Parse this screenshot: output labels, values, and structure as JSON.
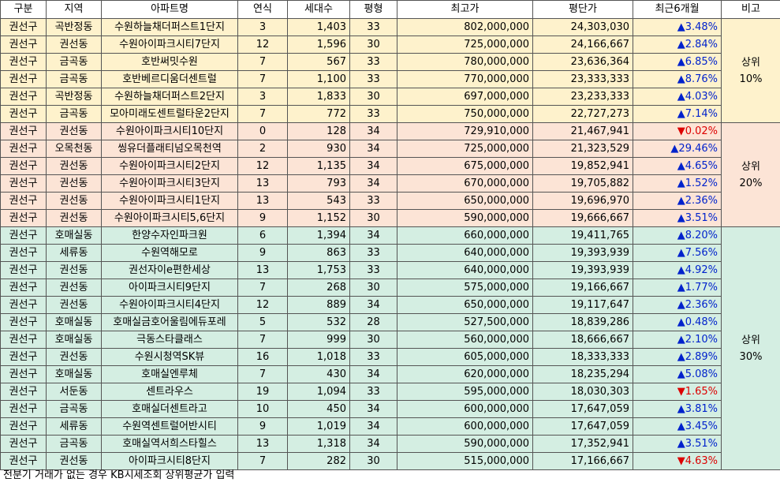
{
  "headers": [
    "구분",
    "지역",
    "아파트명",
    "연식",
    "세대수",
    "평형",
    "최고가",
    "평단가",
    "최근6개월",
    "비고"
  ],
  "groups": [
    {
      "note": [
        "상위",
        "10%"
      ],
      "bg": "#fef2cc",
      "rows": [
        [
          "권선구",
          "곡반정동",
          "수원하늘채더퍼스트1단지",
          "3",
          "1,403",
          "33",
          "802,000,000",
          "24,303,030",
          "▲3.48%"
        ],
        [
          "권선구",
          "권선동",
          "수원아이파크시티7단지",
          "12",
          "1,596",
          "30",
          "725,000,000",
          "24,166,667",
          "▲2.84%"
        ],
        [
          "권선구",
          "금곡동",
          "호반써밋수원",
          "7",
          "567",
          "33",
          "780,000,000",
          "23,636,364",
          "▲6.85%"
        ],
        [
          "권선구",
          "금곡동",
          "호반베르디움더센트럴",
          "7",
          "1,100",
          "33",
          "770,000,000",
          "23,333,333",
          "▲8.76%"
        ],
        [
          "권선구",
          "곡반정동",
          "수원하늘채더퍼스트2단지",
          "3",
          "1,833",
          "30",
          "697,000,000",
          "23,233,333",
          "▲4.03%"
        ],
        [
          "권선구",
          "금곡동",
          "모아미래도센트럴타운2단지",
          "7",
          "772",
          "33",
          "750,000,000",
          "22,727,273",
          "▲7.14%"
        ]
      ]
    },
    {
      "note": [
        "상위",
        "20%"
      ],
      "bg": "#fce4d6",
      "rows": [
        [
          "권선구",
          "권선동",
          "수원아이파크시티10단지",
          "0",
          "128",
          "34",
          "729,910,000",
          "21,467,941",
          "▼0.02%"
        ],
        [
          "권선구",
          "오목천동",
          "씽유더플래티넘오목천역",
          "2",
          "930",
          "34",
          "725,000,000",
          "21,323,529",
          "▲29.46%"
        ],
        [
          "권선구",
          "권선동",
          "수원아이파크시티2단지",
          "12",
          "1,135",
          "34",
          "675,000,000",
          "19,852,941",
          "▲4.65%"
        ],
        [
          "권선구",
          "권선동",
          "수원아이파크시티3단지",
          "13",
          "793",
          "34",
          "670,000,000",
          "19,705,882",
          "▲1.52%"
        ],
        [
          "권선구",
          "권선동",
          "수원아이파크시티1단지",
          "13",
          "543",
          "33",
          "650,000,000",
          "19,696,970",
          "▲2.36%"
        ],
        [
          "권선구",
          "권선동",
          "수원아이파크시티5,6단지",
          "9",
          "1,152",
          "30",
          "590,000,000",
          "19,666,667",
          "▲3.51%"
        ]
      ]
    },
    {
      "note": [
        "상위",
        "30%"
      ],
      "bg": "#d4eee2",
      "rows": [
        [
          "권선구",
          "호매실동",
          "한양수자인파크원",
          "6",
          "1,394",
          "34",
          "660,000,000",
          "19,411,765",
          "▲8.20%"
        ],
        [
          "권선구",
          "세류동",
          "수원역해모로",
          "9",
          "863",
          "33",
          "640,000,000",
          "19,393,939",
          "▲7.56%"
        ],
        [
          "권선구",
          "권선동",
          "권선자이e편한세상",
          "13",
          "1,753",
          "33",
          "640,000,000",
          "19,393,939",
          "▲4.92%"
        ],
        [
          "권선구",
          "권선동",
          "아이파크시티9단지",
          "7",
          "268",
          "30",
          "575,000,000",
          "19,166,667",
          "▲1.77%"
        ],
        [
          "권선구",
          "권선동",
          "수원아이파크시티4단지",
          "12",
          "889",
          "34",
          "650,000,000",
          "19,117,647",
          "▲2.36%"
        ],
        [
          "권선구",
          "호매실동",
          "호매실금호어울림에듀포레",
          "5",
          "532",
          "28",
          "527,500,000",
          "18,839,286",
          "▲0.48%"
        ],
        [
          "권선구",
          "호매실동",
          "극동스타클래스",
          "7",
          "999",
          "30",
          "560,000,000",
          "18,666,667",
          "▲2.10%"
        ],
        [
          "권선구",
          "권선동",
          "수원시청역SK뷰",
          "16",
          "1,018",
          "33",
          "605,000,000",
          "18,333,333",
          "▲2.89%"
        ],
        [
          "권선구",
          "호매실동",
          "호매실엔루체",
          "7",
          "430",
          "34",
          "620,000,000",
          "18,235,294",
          "▲5.08%"
        ],
        [
          "권선구",
          "서둔동",
          "센트라우스",
          "19",
          "1,094",
          "33",
          "595,000,000",
          "18,030,303",
          "▼1.65%"
        ],
        [
          "권선구",
          "금곡동",
          "호매실더센트라고",
          "10",
          "450",
          "34",
          "600,000,000",
          "17,647,059",
          "▲3.81%"
        ],
        [
          "권선구",
          "세류동",
          "수원역센트럴어반시티",
          "9",
          "1,019",
          "34",
          "600,000,000",
          "17,647,059",
          "▲3.45%"
        ],
        [
          "권선구",
          "금곡동",
          "호매실역서희스타힐스",
          "13",
          "1,318",
          "34",
          "590,000,000",
          "17,352,941",
          "▲3.51%"
        ],
        [
          "권선구",
          "권선동",
          "아이파크시티8단지",
          "7",
          "282",
          "30",
          "515,000,000",
          "17,166,667",
          "▼4.63%"
        ]
      ]
    }
  ],
  "colors": {
    "up": "#0022cc",
    "down": "#dd0000",
    "border": "#555555"
  },
  "footnote": "전분기 거래가 없는 경우 KB시세조회 상위평균가 입력"
}
